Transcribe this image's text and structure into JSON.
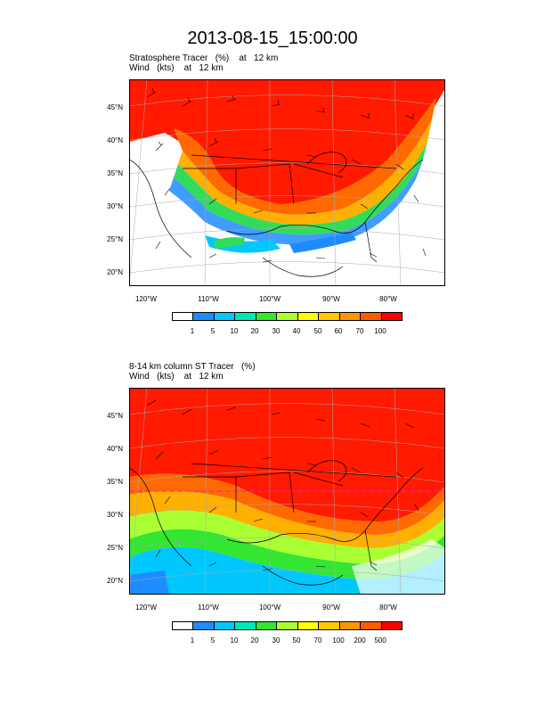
{
  "title": "2013-08-15_15:00:00",
  "panel1": {
    "subtitle_line1": "Stratosphere Tracer   (%)    at   12 km",
    "subtitle_line2": "Wind   (kts)    at   12 km",
    "lat_labels": [
      "45°N",
      "40°N",
      "35°N",
      "30°N",
      "25°N",
      "20°N"
    ],
    "lon_labels": [
      "120°W",
      "110°W",
      "100°W",
      "90°W",
      "80°W"
    ],
    "colorbar_labels": [
      "1",
      "5",
      "10",
      "20",
      "30",
      "40",
      "50",
      "60",
      "70",
      "100"
    ]
  },
  "panel2": {
    "subtitle_line1": "8-14 km column ST Tracer   (%)",
    "subtitle_line2": "Wind   (kts)    at   12 km",
    "lat_labels": [
      "45°N",
      "40°N",
      "35°N",
      "30°N",
      "25°N",
      "20°N"
    ],
    "lon_labels": [
      "120°W",
      "110°W",
      "100°W",
      "90°W",
      "80°W"
    ],
    "colorbar_labels": [
      "1",
      "5",
      "10",
      "20",
      "30",
      "50",
      "70",
      "100",
      "200",
      "500"
    ]
  },
  "colors": [
    "#ffffff",
    "#1e8cff",
    "#00c8ff",
    "#00e6b4",
    "#32e632",
    "#aaff32",
    "#ffff00",
    "#ffc800",
    "#ff9600",
    "#ff5a00",
    "#ff0000"
  ]
}
